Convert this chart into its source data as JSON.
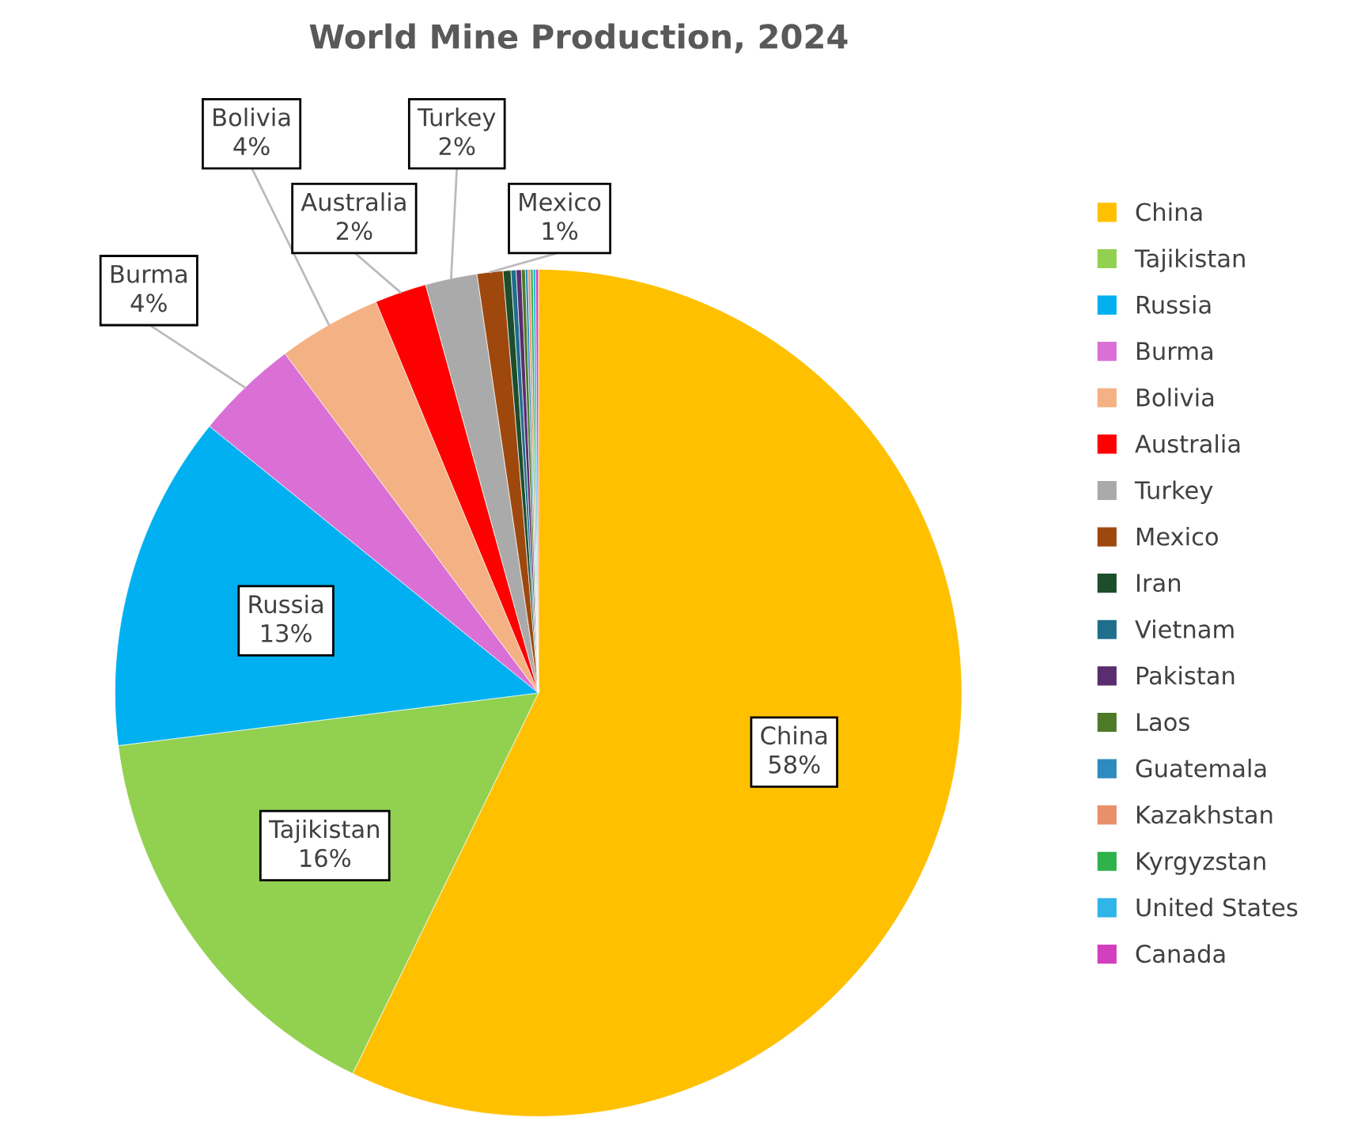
{
  "chart_data": {
    "type": "pie",
    "title": "World Mine Production, 2024",
    "categories": [
      "China",
      "Tajikistan",
      "Russia",
      "Burma",
      "Bolivia",
      "Australia",
      "Turkey",
      "Mexico",
      "Iran",
      "Vietnam",
      "Pakistan",
      "Laos",
      "Guatemala",
      "Kazakhstan",
      "Kyrgyzstan",
      "United States",
      "Canada"
    ],
    "values": [
      58,
      16,
      13,
      4,
      4,
      2,
      2,
      1,
      0.3,
      0.2,
      0.2,
      0.15,
      0.1,
      0.1,
      0.1,
      0.1,
      0.1
    ],
    "value_labels": [
      "58%",
      "16%",
      "13%",
      "4%",
      "4%",
      "2%",
      "2%",
      "1%",
      null,
      null,
      null,
      null,
      null,
      null,
      null,
      null,
      null
    ],
    "colors": [
      "#ffc000",
      "#92d050",
      "#00b0f0",
      "#da70d6",
      "#f4b183",
      "#ff0000",
      "#aaaaaa",
      "#9e480e",
      "#1e4d2b",
      "#1f6e8c",
      "#5b2c6f",
      "#4e7a27",
      "#2e8bc0",
      "#e9906a",
      "#2fb24c",
      "#2fb5e8",
      "#d23fbf"
    ],
    "legend": "right"
  }
}
